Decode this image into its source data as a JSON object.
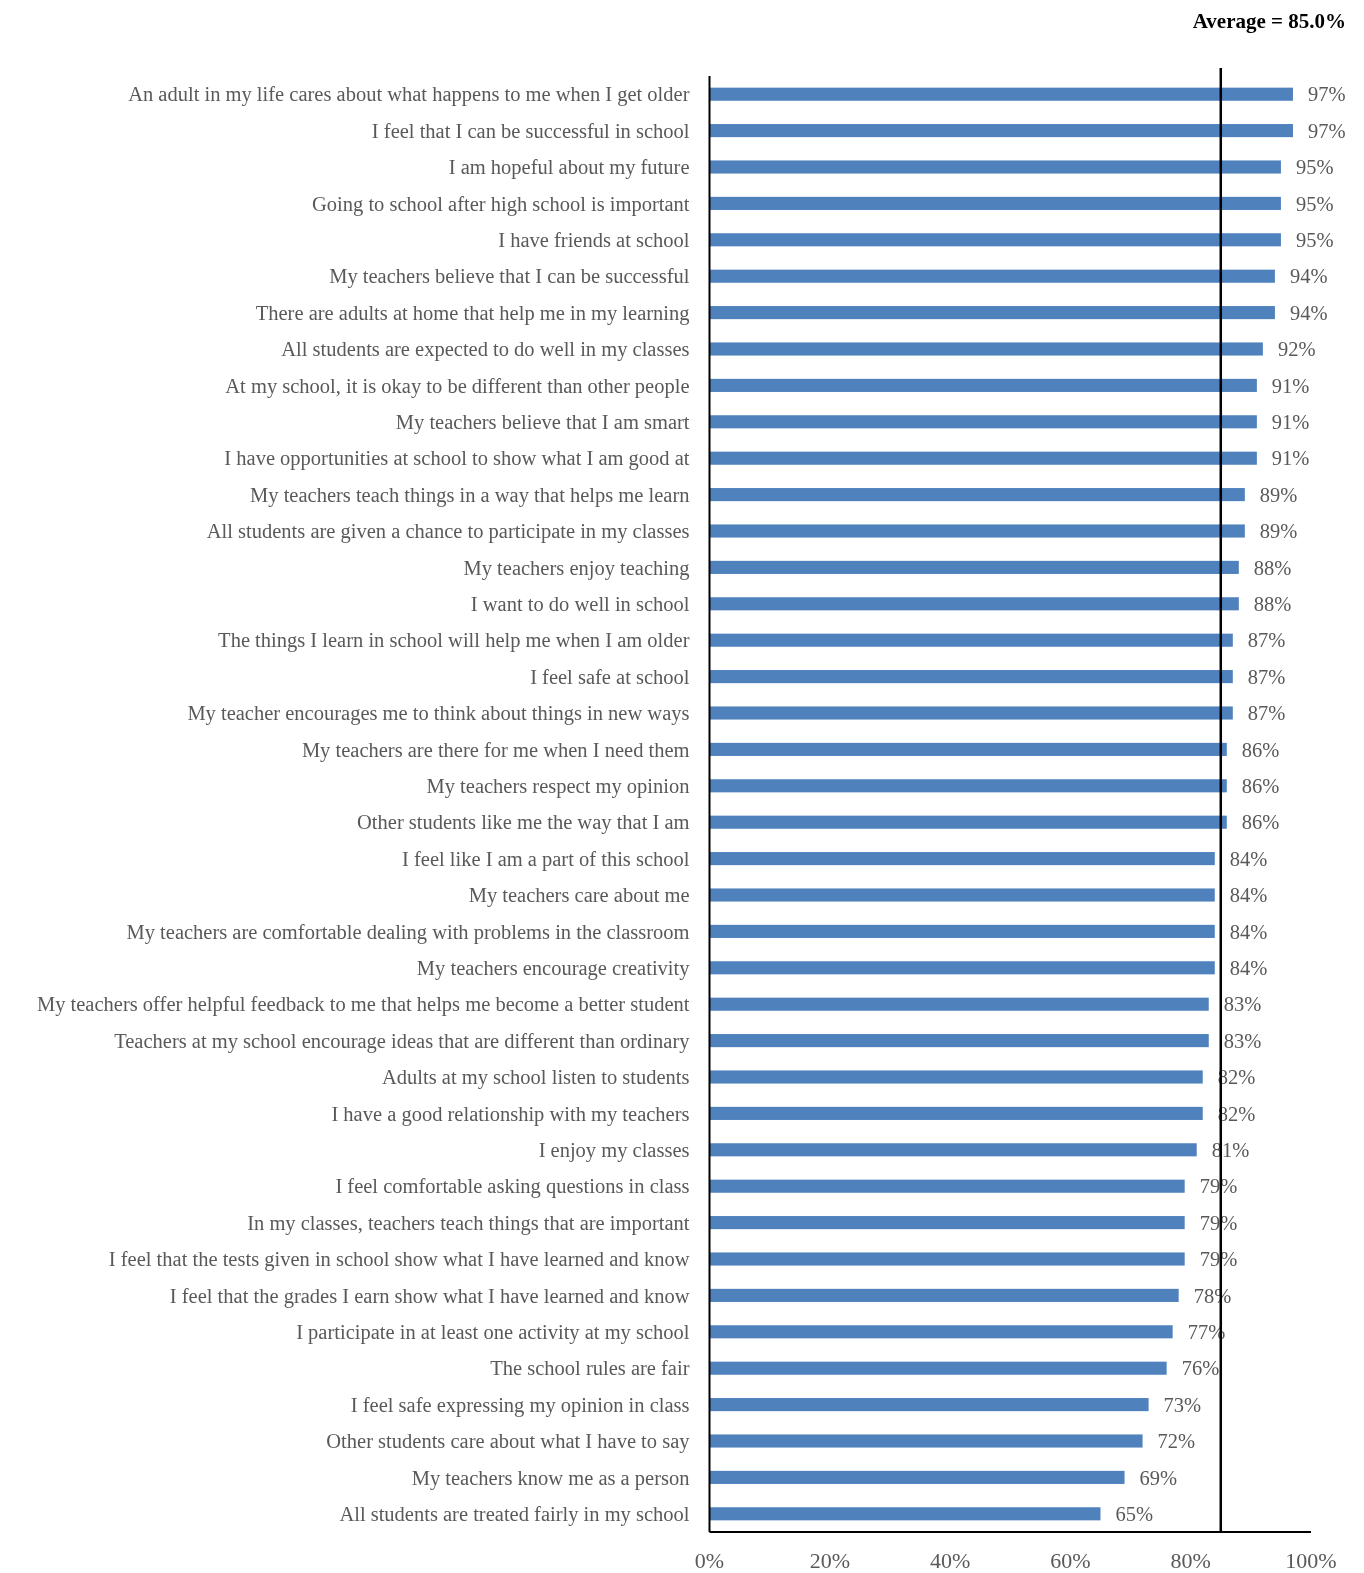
{
  "chart_data": {
    "type": "bar",
    "orientation": "horizontal",
    "categories": [
      "An adult in my life cares about what happens to me when I get older",
      "I feel that I can be successful in school",
      "I am hopeful about my future",
      "Going to school after high school is important",
      "I have friends at school",
      "My teachers believe that I can be successful",
      "There are adults at home that help me in my learning",
      "All students are expected to do well in my classes",
      "At my school, it is okay to be different than other people",
      "My teachers believe that I am smart",
      "I have opportunities at school to show what I am good at",
      "My teachers teach things in a way that helps me learn",
      "All students are given a chance to participate in my classes",
      "My teachers enjoy teaching",
      "I want to do well in school",
      "The things I learn in school will help me when I am older",
      "I feel safe at school",
      "My teacher encourages me to think about things in new ways",
      "My teachers are there for me when I need them",
      "My teachers respect my opinion",
      "Other students like me the way that I am",
      "I feel like I am a part of this school",
      "My teachers care about me",
      "My teachers are comfortable dealing with problems in the classroom",
      "My teachers encourage creativity",
      "My teachers offer helpful feedback to me that helps me become a better student",
      "Teachers at my school encourage ideas that are different than ordinary",
      "Adults at my school listen to students",
      "I have a good relationship with my teachers",
      "I enjoy my classes",
      "I feel comfortable asking questions in class",
      "In my classes, teachers teach things that are important",
      "I feel that the tests given in school show what I have learned and know",
      "I feel that the grades I earn show what I have learned and know",
      "I participate in at least one activity at my school",
      "The school rules are fair",
      "I feel safe expressing my opinion in class",
      "Other students care about what I have to say",
      "My teachers know me as a person",
      "All students are treated fairly in my school"
    ],
    "values": [
      97,
      97,
      95,
      95,
      95,
      94,
      94,
      92,
      91,
      91,
      91,
      89,
      89,
      88,
      88,
      87,
      87,
      87,
      86,
      86,
      86,
      84,
      84,
      84,
      84,
      83,
      83,
      82,
      82,
      81,
      79,
      79,
      79,
      78,
      77,
      76,
      73,
      72,
      69,
      65
    ],
    "value_labels": [
      "97%",
      "97%",
      "95%",
      "95%",
      "95%",
      "94%",
      "94%",
      "92%",
      "91%",
      "91%",
      "91%",
      "89%",
      "89%",
      "88%",
      "88%",
      "87%",
      "87%",
      "87%",
      "86%",
      "86%",
      "86%",
      "84%",
      "84%",
      "84%",
      "84%",
      "83%",
      "83%",
      "82%",
      "82%",
      "81%",
      "79%",
      "79%",
      "79%",
      "78%",
      "77%",
      "76%",
      "73%",
      "72%",
      "69%",
      "65%"
    ],
    "color": "#4f81bd",
    "xlim": [
      0,
      100
    ],
    "xticks": [
      {
        "value": 0,
        "label": "0%"
      },
      {
        "value": 20,
        "label": "20%"
      },
      {
        "value": 40,
        "label": "40%"
      },
      {
        "value": 60,
        "label": "60%"
      },
      {
        "value": 80,
        "label": "80%"
      },
      {
        "value": 100,
        "label": "100%"
      }
    ],
    "ref_lines": [
      {
        "axis": "x",
        "value": 85,
        "label": "Average = 85.0%",
        "color": "#000000"
      }
    ],
    "grid": false
  }
}
